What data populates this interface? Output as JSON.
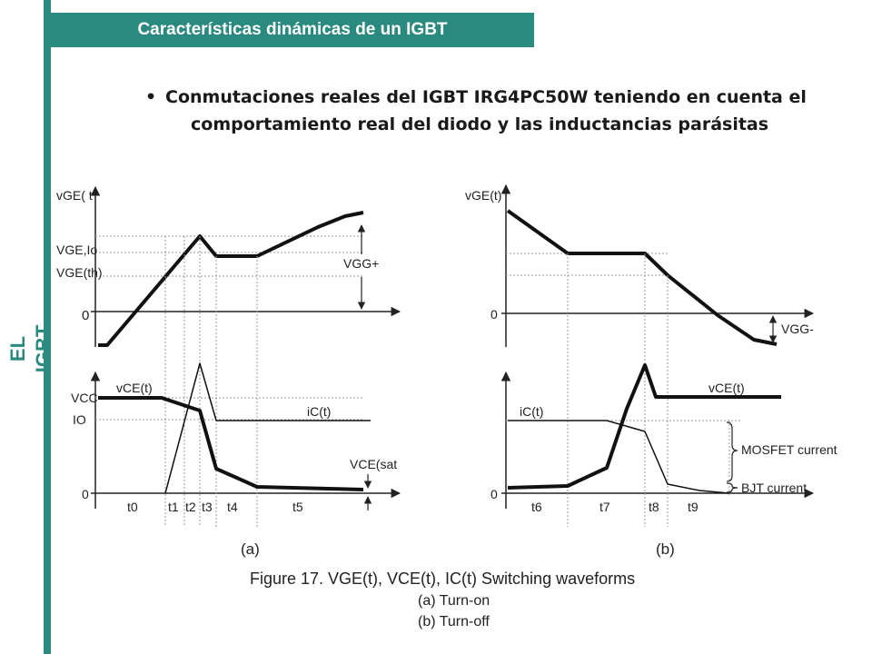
{
  "side_label": "EL IGBT",
  "title": "Características dinámicas de un IGBT",
  "bullet": {
    "line1": "Conmutaciones reales del  IGBT IRG4PC50W teniendo en cuenta el",
    "line2": "comportamiento real del diodo y las inductancias parásitas"
  },
  "colors": {
    "accent": "#2a8a7f",
    "text": "#1a1a1a"
  },
  "figure": {
    "left": {
      "top_axis_label": "vGE( t",
      "y_levels": [
        "VGE,Io",
        "VGE(th)",
        "0"
      ],
      "vgg_label": "VGG+",
      "bottom_y_levels": [
        "VCC",
        "IO",
        "0"
      ],
      "vce_label": "vCE(t)",
      "ic_label": "iC(t)",
      "vcesat_label": "VCE(sat",
      "times": [
        "t0",
        "t1",
        "t2",
        "t3",
        "t4",
        "t5"
      ],
      "panel_label": "(a)"
    },
    "right": {
      "top_axis_label": "vGE(t)",
      "y_levels": [
        "0"
      ],
      "vgg_label": "VGG-",
      "bottom_y_levels": [
        "0"
      ],
      "vce_label": "vCE(t)",
      "ic_label": "iC(t)",
      "mosfet_label": "MOSFET current",
      "bjt_label": "BJT current",
      "times": [
        "t6",
        "t7",
        "t8",
        "t9"
      ],
      "panel_label": "(b)"
    },
    "caption": {
      "line1": "Figure 17. VGE(t), VCE(t), IC(t) Switching waveforms",
      "line2": "(a) Turn-on",
      "line3": "(b) Turn-off"
    }
  }
}
